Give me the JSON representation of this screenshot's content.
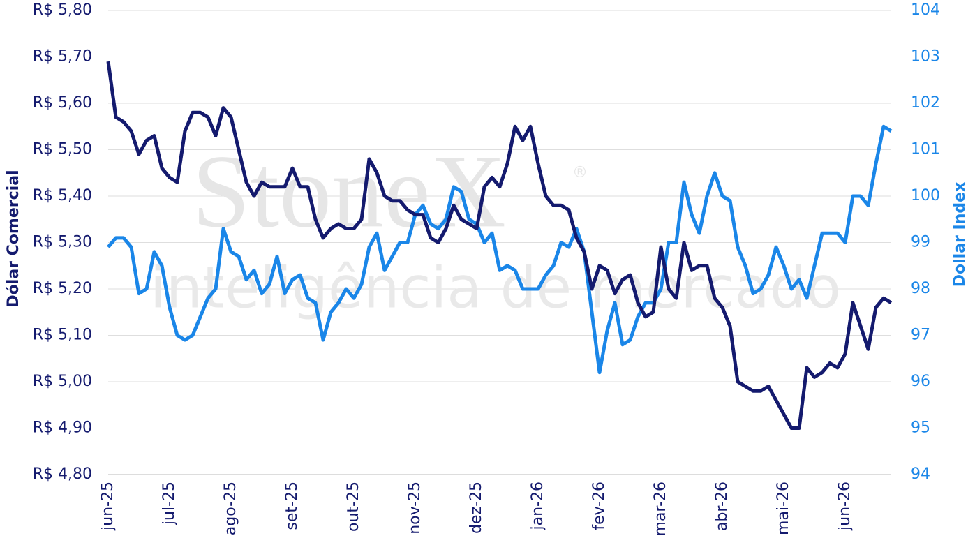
{
  "chart_data": {
    "type": "line",
    "watermark": [
      "StoneX",
      "®",
      "inteligência de mercado"
    ],
    "categories": [
      "jun-25",
      null,
      null,
      null,
      null,
      null,
      null,
      null,
      "jul-25",
      null,
      null,
      null,
      null,
      null,
      null,
      null,
      "ago-25",
      null,
      null,
      null,
      null,
      null,
      null,
      null,
      "set-25",
      null,
      null,
      null,
      null,
      null,
      null,
      null,
      "out-25",
      null,
      null,
      null,
      null,
      null,
      null,
      null,
      "nov-25",
      null,
      null,
      null,
      null,
      null,
      null,
      null,
      "dez-25",
      null,
      null,
      null,
      null,
      null,
      null,
      null,
      "jan-26",
      null,
      null,
      null,
      null,
      null,
      null,
      null,
      "fev-26",
      null,
      null,
      null,
      null,
      null,
      null,
      null,
      "mar-26",
      null,
      null,
      null,
      null,
      null,
      null,
      null,
      "abr-26",
      null,
      null,
      null,
      null,
      null,
      null,
      null,
      "mai-26",
      null,
      null,
      null,
      null,
      null,
      null,
      null,
      "jun-26",
      null,
      null,
      null,
      null,
      null,
      null
    ],
    "series": [
      {
        "name": "Dólar Comercial",
        "color": "#141a6e",
        "axis": "y",
        "values": [
          5.69,
          5.57,
          5.56,
          5.54,
          5.49,
          5.52,
          5.53,
          5.46,
          5.44,
          5.43,
          5.54,
          5.58,
          5.58,
          5.57,
          5.53,
          5.59,
          5.57,
          5.5,
          5.43,
          5.4,
          5.43,
          5.42,
          5.42,
          5.42,
          5.46,
          5.42,
          5.42,
          5.35,
          5.31,
          5.33,
          5.34,
          5.33,
          5.33,
          5.35,
          5.48,
          5.45,
          5.4,
          5.39,
          5.39,
          5.37,
          5.36,
          5.36,
          5.31,
          5.3,
          5.33,
          5.38,
          5.35,
          5.34,
          5.33,
          5.42,
          5.44,
          5.42,
          5.47,
          5.55,
          5.52,
          5.55,
          5.47,
          5.4,
          5.38,
          5.38,
          5.37,
          5.31,
          5.28,
          5.2,
          5.25,
          5.24,
          5.19,
          5.22,
          5.23,
          5.17,
          5.14,
          5.15,
          5.29,
          5.2,
          5.18,
          5.3,
          5.24,
          5.25,
          5.25,
          5.18,
          5.16,
          5.12,
          5.0,
          4.99,
          4.98,
          4.98,
          4.99,
          4.96,
          4.93,
          4.9,
          4.9,
          5.03,
          5.01,
          5.02,
          5.04,
          5.03,
          5.06,
          5.17,
          5.12,
          5.07,
          5.16,
          5.18,
          5.17
        ]
      },
      {
        "name": "Dollar Index",
        "color": "#1a86e8",
        "axis": "y2",
        "values": [
          98.9,
          99.1,
          99.1,
          98.9,
          97.9,
          98.0,
          98.8,
          98.5,
          97.6,
          97.0,
          96.9,
          97.0,
          97.4,
          97.8,
          98.0,
          99.3,
          98.8,
          98.7,
          98.2,
          98.4,
          97.9,
          98.1,
          98.7,
          97.9,
          98.2,
          98.3,
          97.8,
          97.7,
          96.9,
          97.5,
          97.7,
          98.0,
          97.8,
          98.1,
          98.9,
          99.2,
          98.4,
          98.7,
          99.0,
          99.0,
          99.6,
          99.8,
          99.4,
          99.3,
          99.5,
          100.2,
          100.1,
          99.5,
          99.4,
          99.0,
          99.2,
          98.4,
          98.5,
          98.4,
          98.0,
          98.0,
          98.0,
          98.3,
          98.5,
          99.0,
          98.9,
          99.3,
          98.8,
          97.5,
          96.2,
          97.1,
          97.7,
          96.8,
          96.9,
          97.4,
          97.7,
          97.7,
          98.0,
          99.0,
          99.0,
          100.3,
          99.6,
          99.2,
          100.0,
          100.5,
          100.0,
          99.9,
          98.9,
          98.5,
          97.9,
          98.0,
          98.3,
          98.9,
          98.5,
          98.0,
          98.2,
          97.8,
          98.5,
          99.2,
          99.2,
          99.2,
          99.0,
          100.0,
          100.0,
          99.8,
          100.7,
          101.5,
          101.4
        ]
      }
    ],
    "ylim": [
      4.8,
      5.8
    ],
    "yticks": [
      {
        "value": 4.8,
        "label": "R$ 4,80"
      },
      {
        "value": 4.9,
        "label": "R$ 4,90"
      },
      {
        "value": 5.0,
        "label": "R$ 5,00"
      },
      {
        "value": 5.1,
        "label": "R$ 5,10"
      },
      {
        "value": 5.2,
        "label": "R$ 5,20"
      },
      {
        "value": 5.3,
        "label": "R$ 5,30"
      },
      {
        "value": 5.4,
        "label": "R$ 5,40"
      },
      {
        "value": 5.5,
        "label": "R$ 5,50"
      },
      {
        "value": 5.6,
        "label": "R$ 5,60"
      },
      {
        "value": 5.7,
        "label": "R$ 5,70"
      },
      {
        "value": 5.8,
        "label": "R$ 5,80"
      }
    ],
    "y2lim": [
      94,
      104
    ],
    "y2ticks": [
      94,
      95,
      96,
      97,
      98,
      99,
      100,
      101,
      102,
      103,
      104
    ],
    "grid": true
  }
}
